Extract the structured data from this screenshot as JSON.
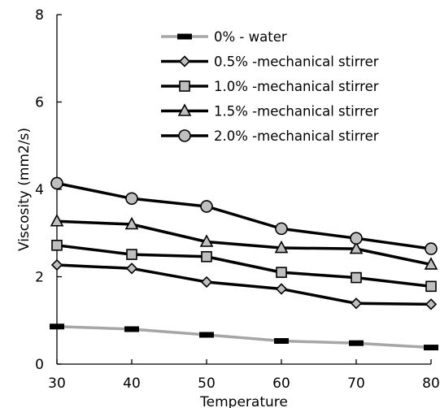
{
  "chart_data": {
    "type": "line",
    "xlabel": "Temperature",
    "ylabel": "Viscosity (mm2/s)",
    "xlim": [
      30,
      80
    ],
    "ylim": [
      0,
      8
    ],
    "x_ticks": [
      "30",
      "40",
      "50",
      "60",
      "70",
      "80"
    ],
    "y_ticks": [
      "0",
      "2",
      "4",
      "6",
      "8"
    ],
    "x": [
      30,
      40,
      50,
      60,
      70,
      80
    ],
    "legend_position": "top-right",
    "grid": false,
    "series": [
      {
        "name": "0% - water",
        "values": [
          0.86,
          0.8,
          0.67,
          0.53,
          0.48,
          0.38
        ],
        "color": "#a6a6a6",
        "marker": "dash"
      },
      {
        "name": "0.5% -mechanical stirrer",
        "values": [
          2.27,
          2.19,
          1.88,
          1.72,
          1.39,
          1.37
        ],
        "color": "#000000",
        "marker": "diamond"
      },
      {
        "name": "1.0% -mechanical stirrer",
        "values": [
          2.72,
          2.51,
          2.46,
          2.1,
          1.98,
          1.78
        ],
        "color": "#000000",
        "marker": "square"
      },
      {
        "name": "1.5% -mechanical stirrer",
        "values": [
          3.27,
          3.2,
          2.8,
          2.66,
          2.64,
          2.28
        ],
        "color": "#000000",
        "marker": "triangle"
      },
      {
        "name": "2.0% -mechanical stirrer",
        "values": [
          4.14,
          3.79,
          3.61,
          3.1,
          2.88,
          2.64
        ],
        "color": "#000000",
        "marker": "circle"
      }
    ]
  }
}
